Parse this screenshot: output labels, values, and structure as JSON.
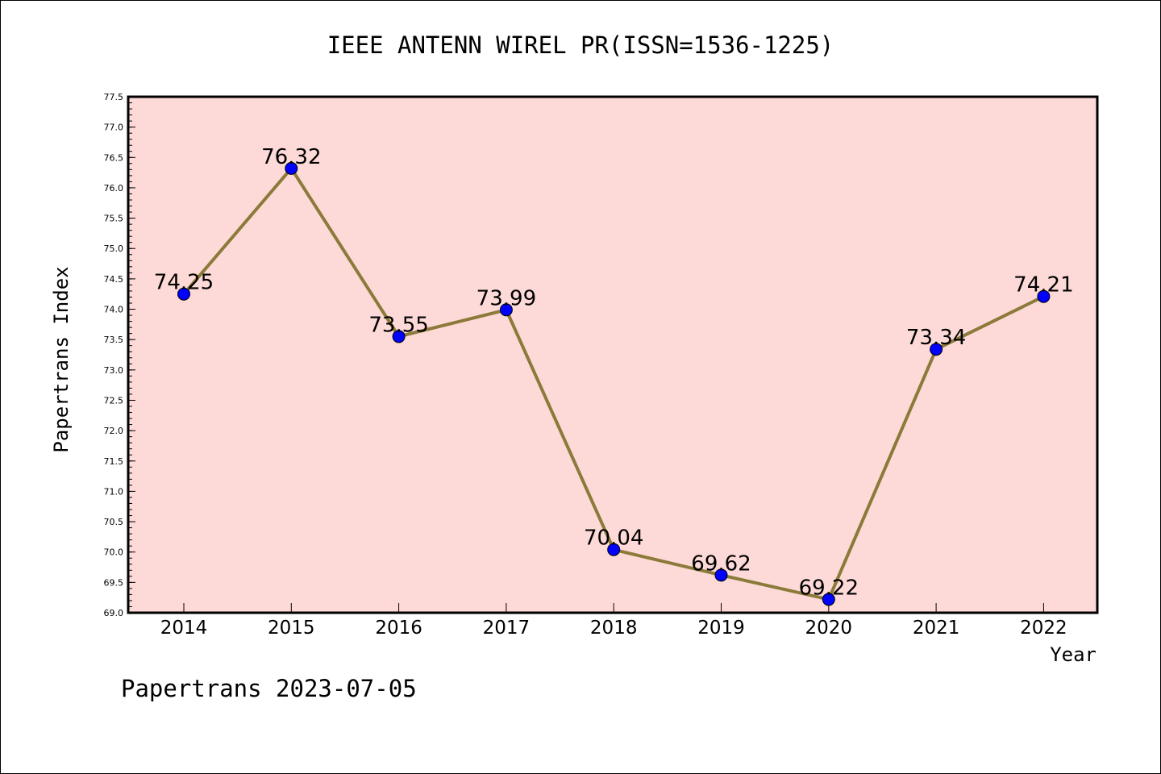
{
  "chart_data": {
    "type": "line",
    "title": "IEEE ANTENN WIREL PR(ISSN=1536-1225)",
    "xlabel": "Year",
    "ylabel": "Papertrans Index",
    "categories": [
      "2014",
      "2015",
      "2016",
      "2017",
      "2018",
      "2019",
      "2020",
      "2021",
      "2022"
    ],
    "values": [
      74.25,
      76.32,
      73.55,
      73.99,
      70.04,
      69.62,
      69.22,
      73.34,
      74.21
    ],
    "data_labels": [
      "74.25",
      "76.32",
      "73.55",
      "73.99",
      "70.04",
      "69.62",
      "69.22",
      "73.34",
      "74.21"
    ],
    "ylim": [
      69.0,
      77.5
    ],
    "yticks": [
      "69.0",
      "69.5",
      "70.0",
      "70.5",
      "71.0",
      "71.5",
      "72.0",
      "72.5",
      "73.0",
      "73.5",
      "74.0",
      "74.5",
      "75.0",
      "75.5",
      "76.0",
      "76.5",
      "77.0",
      "77.5"
    ],
    "grid": false,
    "colors": {
      "plot_background": "#fddad7",
      "line": "#8b7a3a",
      "marker": "#0000ff"
    },
    "footer": "Papertrans 2023-07-05"
  }
}
